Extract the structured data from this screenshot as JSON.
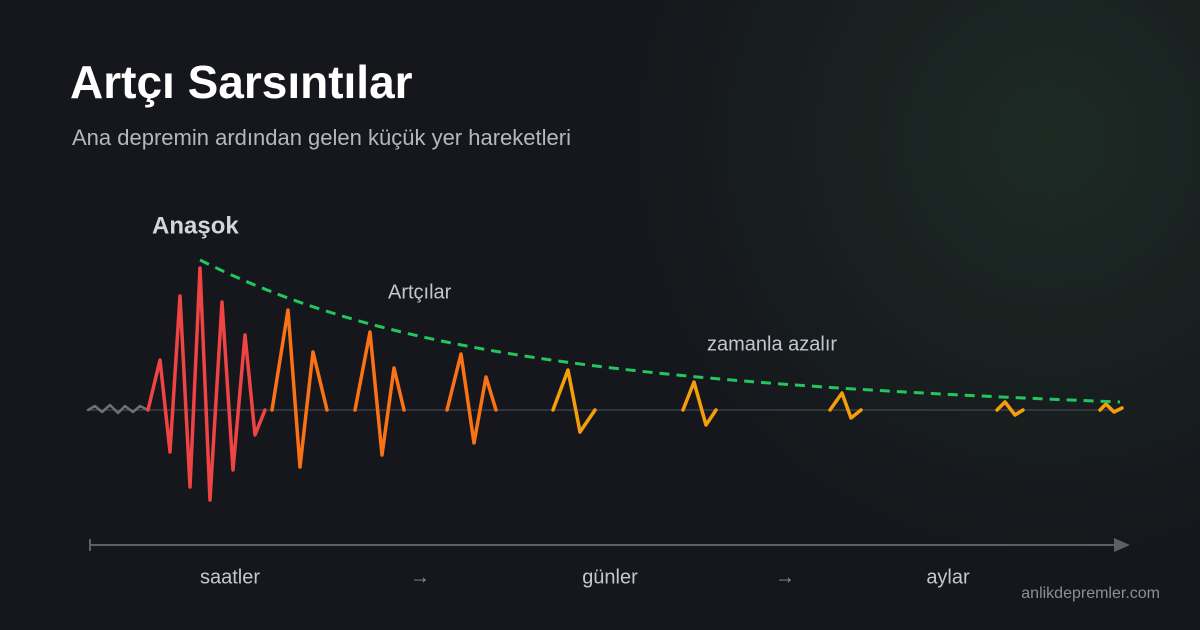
{
  "header": {
    "title": "Artçı Sarsıntılar",
    "subtitle": "Ana depremin ardından gelen küçük yer hareketleri"
  },
  "labels": {
    "mainshock": "Anaşok",
    "aftershocks": "Artçılar",
    "decay": "zamanla azalır"
  },
  "timeline": [
    "saatler",
    "→",
    "günler",
    "→",
    "aylar"
  ],
  "footer": {
    "site": "anlikdepremler.com"
  }
}
